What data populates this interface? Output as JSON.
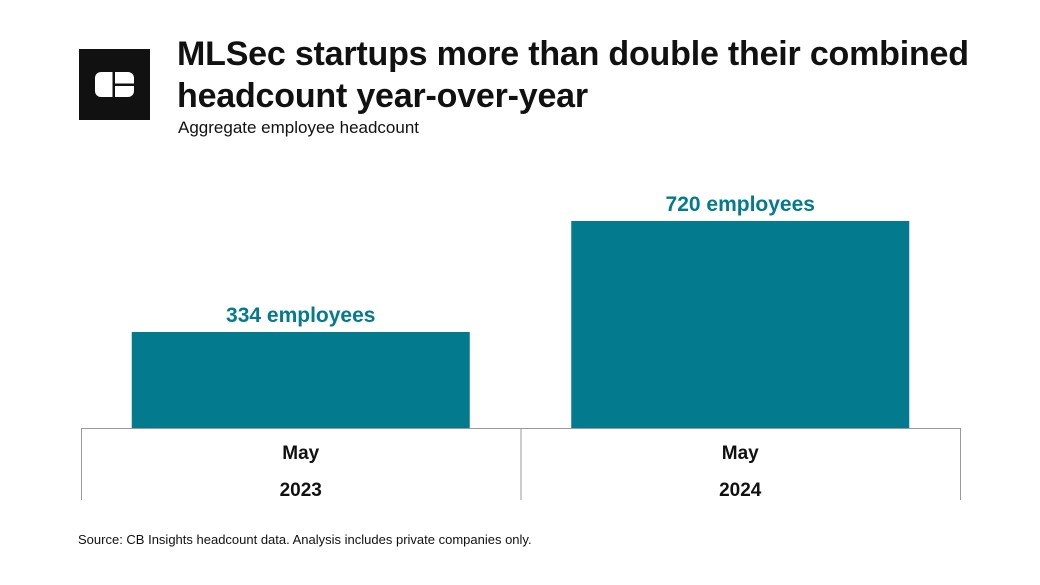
{
  "header": {
    "title": "MLSec startups more than double their combined headcount year-over-year",
    "subtitle": "Aggregate employee headcount",
    "logo_icon": "cb-insights-logo"
  },
  "footer": {
    "source": "Source: CB Insights headcount data. Analysis includes private companies only."
  },
  "colors": {
    "bar": "#037A8E",
    "label": "#037A8E",
    "axis": "#999999"
  },
  "chart_data": {
    "type": "bar",
    "title": "MLSec startups more than double their combined headcount year-over-year",
    "subtitle": "Aggregate employee headcount",
    "xlabel": "",
    "ylabel": "",
    "categories": [
      {
        "line1": "May",
        "line2": "2023"
      },
      {
        "line1": "May",
        "line2": "2024"
      }
    ],
    "values": [
      334,
      720
    ],
    "data_labels": [
      "334 employees",
      "720 employees"
    ],
    "ylim": [
      0,
      720
    ],
    "grid": false,
    "legend": "none"
  }
}
